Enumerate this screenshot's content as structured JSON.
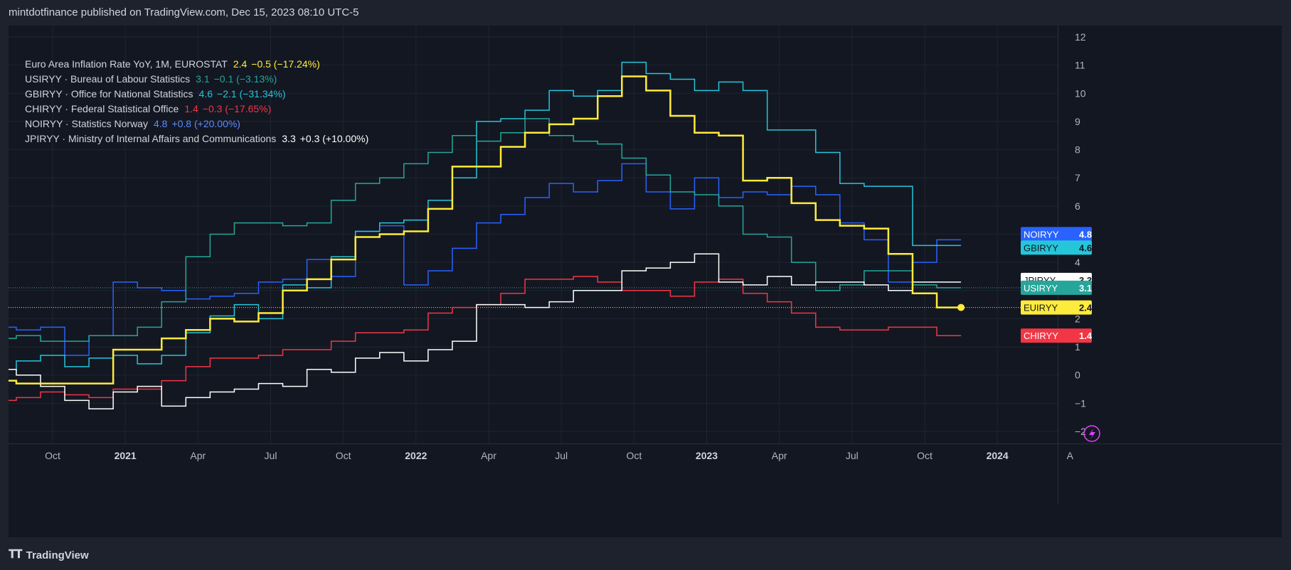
{
  "header": {
    "text": "mintdotfinance published on TradingView.com, Dec 15, 2023 08:10 UTC-5"
  },
  "footer": {
    "logo_icon": "tradingview-logo-icon",
    "label": "TradingView"
  },
  "colors": {
    "background": "#131722",
    "page": "#1e222d",
    "grid": "#1f2430",
    "axis_text": "#b2b5be",
    "EUIRYY": "#ffeb3b",
    "USIRYY": "#26a69a",
    "GBIRYY": "#26c6da",
    "CHIRYY": "#f23645",
    "NOIRYY": "#2962ff",
    "JPIRYY": "#ffffff"
  },
  "legend": [
    {
      "name": "Euro Area Inflation Rate YoY, 1M, EUROSTAT",
      "value": "2.4",
      "change": "−0.5 (−17.24%)",
      "color": "#ffeb3b"
    },
    {
      "name": "USIRYY · Bureau of Labour Statistics",
      "value": "3.1",
      "change": "−0.1 (−3.13%)",
      "color": "#26a69a"
    },
    {
      "name": "GBIRYY · Office for National Statistics",
      "value": "4.6",
      "change": "−2.1 (−31.34%)",
      "color": "#26c6da"
    },
    {
      "name": "CHIRYY · Federal Statistical Office",
      "value": "1.4",
      "change": "−0.3 (−17.65%)",
      "color": "#f23645"
    },
    {
      "name": "NOIRYY · Statistics Norway",
      "value": "4.8",
      "change": "+0.8 (+20.00%)",
      "color": "#5b8cff"
    },
    {
      "name": "JPIRYY · Ministry of Internal Affairs and Communications",
      "value": "3.3",
      "change": "+0.3 (+10.00%)",
      "color": "#ffffff"
    }
  ],
  "chart_data": {
    "type": "line",
    "step": true,
    "x": [
      "2020-08",
      "2020-09",
      "2020-10",
      "2020-11",
      "2020-12",
      "2021-01",
      "2021-02",
      "2021-03",
      "2021-04",
      "2021-05",
      "2021-06",
      "2021-07",
      "2021-08",
      "2021-09",
      "2021-10",
      "2021-11",
      "2021-12",
      "2022-01",
      "2022-02",
      "2022-03",
      "2022-04",
      "2022-05",
      "2022-06",
      "2022-07",
      "2022-08",
      "2022-09",
      "2022-10",
      "2022-11",
      "2022-12",
      "2023-01",
      "2023-02",
      "2023-03",
      "2023-04",
      "2023-05",
      "2023-06",
      "2023-07",
      "2023-08",
      "2023-09",
      "2023-10",
      "2023-11"
    ],
    "series": [
      {
        "name": "EUIRYY",
        "color": "#ffeb3b",
        "width": 2.5,
        "values": [
          -0.2,
          -0.3,
          -0.3,
          -0.3,
          -0.3,
          0.9,
          0.9,
          1.3,
          1.6,
          2.0,
          1.9,
          2.2,
          3.0,
          3.4,
          4.1,
          4.9,
          5.0,
          5.1,
          5.9,
          7.4,
          7.4,
          8.1,
          8.6,
          8.9,
          9.1,
          9.9,
          10.6,
          10.1,
          9.2,
          8.6,
          8.5,
          6.9,
          7.0,
          6.1,
          5.5,
          5.3,
          5.2,
          4.3,
          2.9,
          2.4
        ]
      },
      {
        "name": "USIRYY",
        "color": "#26a69a",
        "width": 1.5,
        "values": [
          1.3,
          1.4,
          1.2,
          1.2,
          1.4,
          1.4,
          1.7,
          2.6,
          4.2,
          5.0,
          5.4,
          5.4,
          5.3,
          5.4,
          6.2,
          6.8,
          7.0,
          7.5,
          7.9,
          8.5,
          8.3,
          8.6,
          9.1,
          8.5,
          8.3,
          8.2,
          7.7,
          7.1,
          6.5,
          6.4,
          6.0,
          5.0,
          4.9,
          4.0,
          3.0,
          3.2,
          3.7,
          3.7,
          3.2,
          3.1
        ]
      },
      {
        "name": "GBIRYY",
        "color": "#26c6da",
        "width": 1.5,
        "values": [
          0.2,
          0.5,
          0.7,
          0.3,
          0.6,
          0.7,
          0.4,
          0.7,
          1.5,
          2.1,
          2.5,
          2.0,
          3.2,
          3.1,
          4.2,
          5.1,
          5.4,
          5.5,
          6.2,
          7.0,
          9.0,
          9.1,
          9.4,
          10.1,
          9.9,
          10.1,
          11.1,
          10.7,
          10.5,
          10.1,
          10.4,
          10.1,
          8.7,
          8.7,
          7.9,
          6.8,
          6.7,
          6.7,
          4.6,
          4.6
        ]
      },
      {
        "name": "CHIRYY",
        "color": "#f23645",
        "width": 1.5,
        "values": [
          -0.9,
          -0.8,
          -0.6,
          -0.7,
          -0.8,
          -0.5,
          -0.5,
          -0.2,
          0.3,
          0.6,
          0.6,
          0.7,
          0.9,
          0.9,
          1.2,
          1.5,
          1.5,
          1.6,
          2.2,
          2.4,
          2.5,
          2.9,
          3.4,
          3.4,
          3.5,
          3.3,
          3.0,
          3.0,
          2.8,
          3.3,
          3.4,
          2.9,
          2.6,
          2.2,
          1.7,
          1.6,
          1.6,
          1.7,
          1.7,
          1.4
        ]
      },
      {
        "name": "NOIRYY",
        "color": "#2962ff",
        "width": 1.5,
        "values": [
          1.7,
          1.6,
          1.7,
          0.7,
          1.4,
          3.3,
          3.1,
          3.0,
          2.7,
          2.8,
          2.9,
          3.3,
          3.4,
          4.1,
          3.5,
          5.1,
          5.3,
          3.2,
          3.7,
          4.5,
          5.4,
          5.7,
          6.3,
          6.8,
          6.5,
          6.9,
          7.5,
          6.5,
          5.9,
          7.0,
          6.3,
          6.5,
          6.4,
          6.7,
          6.4,
          5.4,
          4.8,
          3.3,
          4.0,
          4.8
        ]
      },
      {
        "name": "JPIRYY",
        "color": "#ffffff",
        "width": 1.5,
        "values": [
          0.2,
          0.0,
          -0.4,
          -0.9,
          -1.2,
          -0.6,
          -0.4,
          -1.1,
          -0.8,
          -0.6,
          -0.5,
          -0.3,
          -0.4,
          0.2,
          0.1,
          0.6,
          0.8,
          0.5,
          0.9,
          1.2,
          2.5,
          2.5,
          2.4,
          2.6,
          3.0,
          3.0,
          3.7,
          3.8,
          4.0,
          4.3,
          3.3,
          3.2,
          3.5,
          3.2,
          3.3,
          3.3,
          3.2,
          3.0,
          3.3,
          3.3
        ]
      }
    ],
    "y_ticks": [
      "12",
      "11",
      "10",
      "9",
      "8",
      "7",
      "6",
      "5",
      "4",
      "3",
      "2",
      "1",
      "0",
      "−1",
      "−2"
    ],
    "y_tick_values": [
      12,
      11,
      10,
      9,
      8,
      7,
      6,
      5,
      4,
      3,
      2,
      1,
      0,
      -1,
      -2
    ],
    "ylim": [
      -2.5,
      12.5
    ],
    "x_ticks": [
      {
        "label": "Oct",
        "x": "2020-10",
        "bold": false
      },
      {
        "label": "2021",
        "x": "2021-01",
        "bold": true
      },
      {
        "label": "Apr",
        "x": "2021-04",
        "bold": false
      },
      {
        "label": "Jul",
        "x": "2021-07",
        "bold": false
      },
      {
        "label": "Oct",
        "x": "2021-10",
        "bold": false
      },
      {
        "label": "2022",
        "x": "2022-01",
        "bold": true
      },
      {
        "label": "Apr",
        "x": "2022-04",
        "bold": false
      },
      {
        "label": "Jul",
        "x": "2022-07",
        "bold": false
      },
      {
        "label": "Oct",
        "x": "2022-10",
        "bold": false
      },
      {
        "label": "2023",
        "x": "2023-01",
        "bold": true
      },
      {
        "label": "Apr",
        "x": "2023-04",
        "bold": false
      },
      {
        "label": "Jul",
        "x": "2023-07",
        "bold": false
      },
      {
        "label": "Oct",
        "x": "2023-10",
        "bold": false
      },
      {
        "label": "2024",
        "x": "2024-01",
        "bold": true
      },
      {
        "label": "A",
        "x": "2024-04",
        "bold": false
      }
    ],
    "price_labels": [
      {
        "name": "NOIRYY",
        "value": "4.8",
        "bg": "#2962ff",
        "text": "#ffffff"
      },
      {
        "name": "GBIRYY",
        "value": "4.6",
        "bg": "#26c6da",
        "text": "#131722"
      },
      {
        "name": "JPIRYY",
        "value": "3.3",
        "bg": "#ffffff",
        "text": "#131722"
      },
      {
        "name": "USIRYY",
        "value": "3.1",
        "bg": "#26a69a",
        "text": "#ffffff"
      },
      {
        "name": "EUIRYY",
        "value": "2.4",
        "bg": "#ffeb3b",
        "text": "#131722"
      },
      {
        "name": "CHIRYY",
        "value": "1.4",
        "bg": "#f23645",
        "text": "#ffffff"
      }
    ],
    "grid": true,
    "legend_position": "top-left"
  }
}
